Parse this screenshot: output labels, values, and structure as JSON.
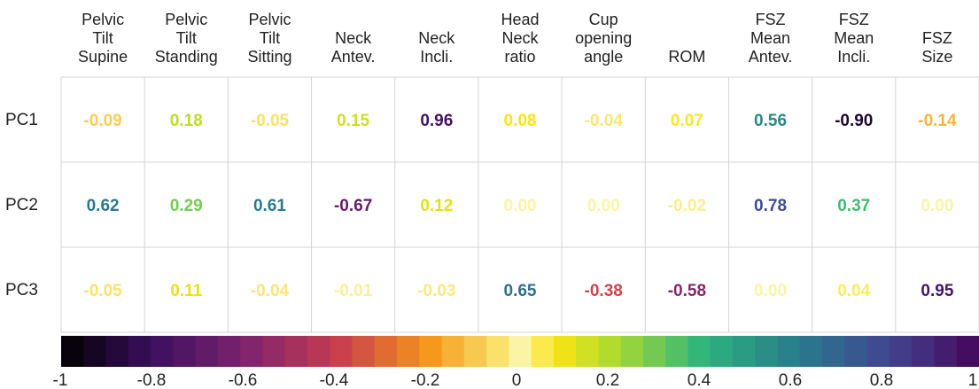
{
  "chart_data": {
    "type": "heatmap",
    "title": "",
    "columns": [
      [
        "Pelvic",
        "Tilt",
        "Supine"
      ],
      [
        "Pelvic",
        "Tilt",
        "Standing"
      ],
      [
        "Pelvic",
        "Tilt",
        "Sitting"
      ],
      [
        "Neck",
        "Antev."
      ],
      [
        "Neck",
        "Incli."
      ],
      [
        "Head",
        "Neck",
        "ratio"
      ],
      [
        "Cup",
        "opening",
        "angle"
      ],
      [
        "ROM"
      ],
      [
        "FSZ",
        "Mean",
        "Antev."
      ],
      [
        "FSZ",
        "Mean",
        "Incli."
      ],
      [
        "FSZ",
        "Size"
      ]
    ],
    "rows": [
      "PC1",
      "PC2",
      "PC3"
    ],
    "values": [
      [
        "-0.09",
        "0.18",
        "-0.05",
        "0.15",
        "0.96",
        "0.08",
        "-0.04",
        "0.07",
        "0.56",
        "-0.90",
        "-0.14"
      ],
      [
        "0.62",
        "0.29",
        "0.61",
        "-0.67",
        "0.12",
        "0.00",
        "0.00",
        "-0.02",
        "0.78",
        "0.37",
        "0.00"
      ],
      [
        "-0.05",
        "0.11",
        "-0.04",
        "-0.01",
        "-0.03",
        "0.65",
        "-0.38",
        "-0.58",
        "0.00",
        "0.04",
        "0.95"
      ]
    ],
    "colorbar": {
      "range": [
        -1,
        1
      ],
      "ticks": [
        "-1",
        "-0.8",
        "-0.6",
        "-0.4",
        "-0.2",
        "0",
        "0.2",
        "0.4",
        "0.6",
        "0.8",
        "1"
      ]
    },
    "grid": true,
    "legend_position": "bottom"
  }
}
